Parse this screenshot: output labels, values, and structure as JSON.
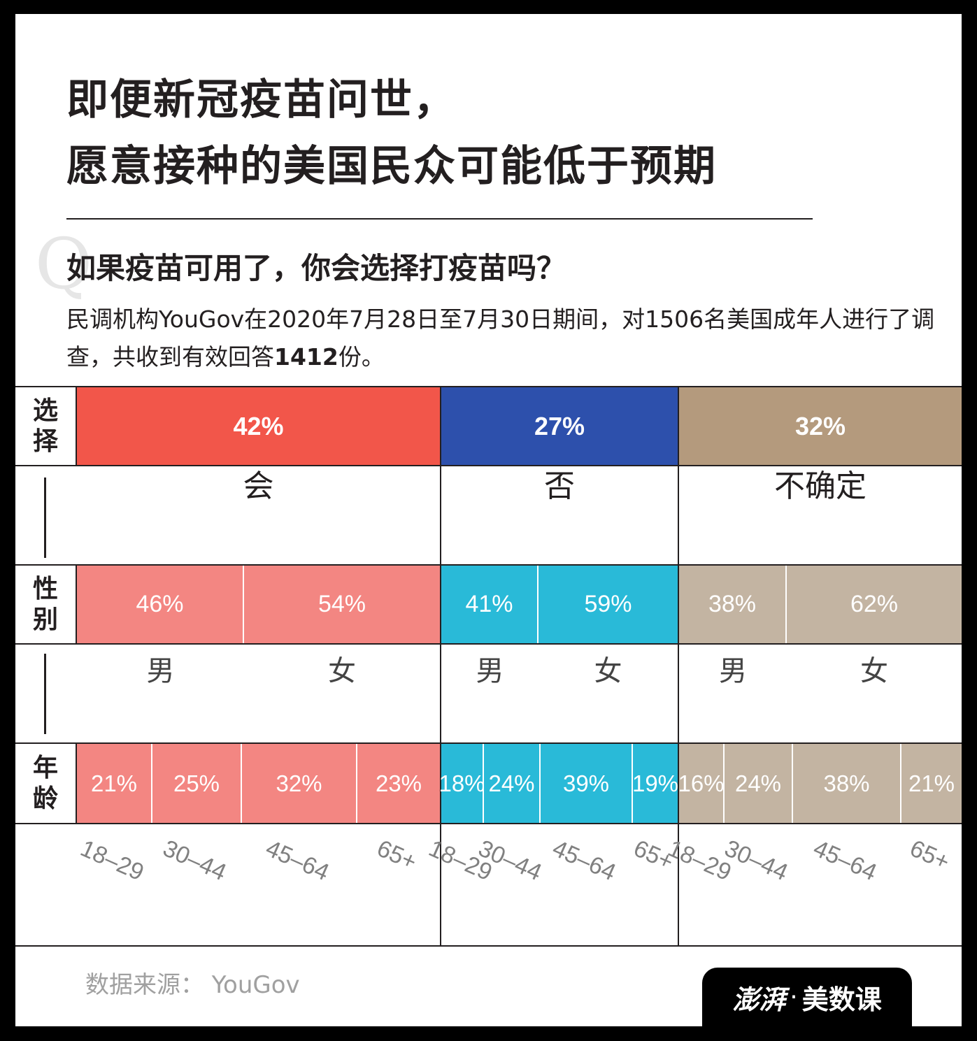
{
  "title_line1": "即便新冠疫苗问世，",
  "title_line2": "愿意接种的美国民众可能低于预期",
  "q_mark": "Q",
  "question": "如果疫苗可用了，你会选择打疫苗吗？",
  "description_text": "民调机构YouGov在2020年7月28日至7月30日期间，对1506名美国成年人进行了调查，共收到有效回答",
  "description_count": "1412",
  "description_suffix": "份。",
  "row_labels": {
    "choice": [
      "选",
      "择"
    ],
    "gender": [
      "性",
      "别"
    ],
    "age": [
      "年",
      "龄"
    ]
  },
  "colors": {
    "will_main": "#f2564a",
    "no_main": "#2d50ac",
    "unsure_main": "#b49a7d",
    "will_sub": "#f38682",
    "no_sub": "#29bad8",
    "unsure_sub": "#c3b4a2"
  },
  "chart_data": {
    "type": "bar",
    "title": "如果疫苗可用了，你会选择打疫苗吗？",
    "categories": [
      "会",
      "否",
      "不确定"
    ],
    "values": [
      42,
      27,
      32
    ],
    "value_labels": [
      "42%",
      "27%",
      "32%"
    ],
    "gender": {
      "labels": [
        "男",
        "女"
      ],
      "series": [
        {
          "category": "会",
          "values": [
            46,
            54
          ],
          "value_labels": [
            "46%",
            "54%"
          ]
        },
        {
          "category": "否",
          "values": [
            41,
            59
          ],
          "value_labels": [
            "41%",
            "59%"
          ]
        },
        {
          "category": "不确定",
          "values": [
            38,
            62
          ],
          "value_labels": [
            "38%",
            "62%"
          ]
        }
      ]
    },
    "age": {
      "labels": [
        "18–29",
        "30–44",
        "45–64",
        "65+"
      ],
      "series": [
        {
          "category": "会",
          "values": [
            21,
            25,
            32,
            23
          ],
          "value_labels": [
            "21%",
            "25%",
            "32%",
            "23%"
          ]
        },
        {
          "category": "否",
          "values": [
            18,
            24,
            39,
            19
          ],
          "value_labels": [
            "18%",
            "24%",
            "39%",
            "19%"
          ]
        },
        {
          "category": "不确定",
          "values": [
            16,
            24,
            38,
            21
          ],
          "value_labels": [
            "16%",
            "24%",
            "38%",
            "21%"
          ]
        }
      ]
    }
  },
  "source": "数据来源： YouGov",
  "logo": {
    "brand": "澎湃",
    "separator": "·",
    "section": "美数课"
  }
}
